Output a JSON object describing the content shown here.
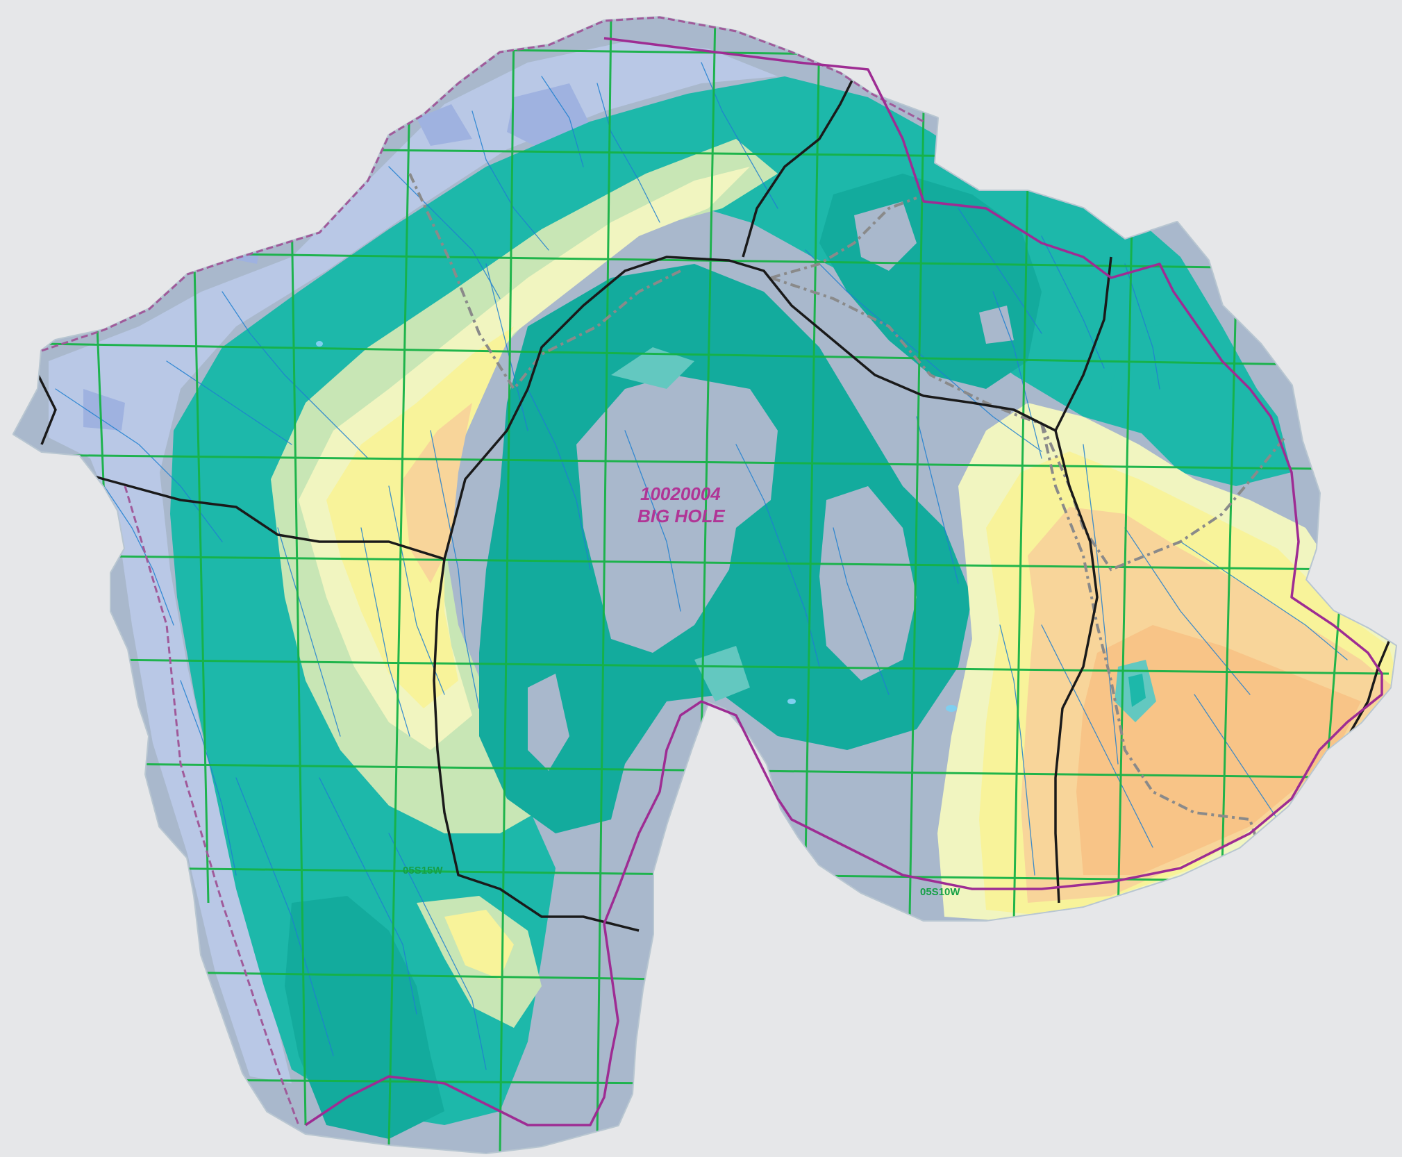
{
  "map": {
    "hydrologic_unit_code": "10020004",
    "hydrologic_unit_name": "BIG HOLE",
    "township_labels": [
      "05S15W",
      "05S10W"
    ]
  },
  "colors": {
    "background": "#e6e7e9",
    "outer_halo": "#c7d3dc",
    "low_blue_gray": "#a9b8cc",
    "light_blue": "#b9c8e6",
    "periwinkle": "#9fb2e0",
    "teal_band": "#1db8aa",
    "teal_dark": "#13ab9d",
    "light_teal": "#63c8c0",
    "pale_green": "#c8e6b5",
    "pale_yellow": "#f1f5c0",
    "yellow": "#f8f39a",
    "light_orange": "#f8d59a",
    "orange": "#f8c487",
    "pls_grid": "#16b246",
    "stream": "#1e7fd0",
    "highway": "#1a1a1a",
    "county_boundary": "#9e2c93",
    "basin_boundary_dashed": "#a05a9a",
    "unit_label": "#b03596",
    "township_label": "#16a046",
    "road_secondary": "#8a8a8a"
  }
}
